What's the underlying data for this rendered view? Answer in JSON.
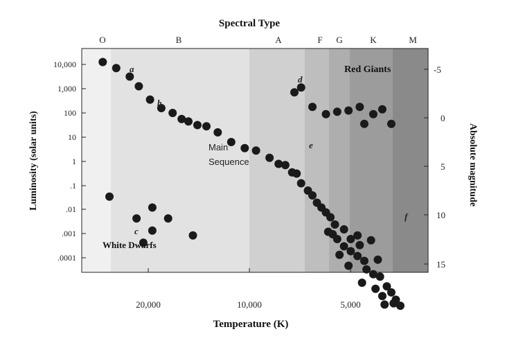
{
  "chart_data": {
    "type": "scatter",
    "title": "Spectral Type",
    "xlabel": "Temperature (K)",
    "ylabel_left": "Luminosity (solar units)",
    "ylabel_right": "Absolute magnitude",
    "spectral_types": [
      "O",
      "B",
      "A",
      "F",
      "G",
      "K",
      "M"
    ],
    "x_ticks": [
      "20,000",
      "10,000",
      "5,000"
    ],
    "y_ticks_left": [
      "10,000",
      "1,000",
      "100",
      "10",
      "1",
      ".1",
      ".01",
      ".001",
      ".0001"
    ],
    "y_ticks_right": [
      "-5",
      "0",
      "5",
      "10",
      "15"
    ],
    "regions": [
      {
        "label": "White Dwarfs"
      },
      {
        "label": "Main\nSequence"
      },
      {
        "label": "Red Giants"
      }
    ],
    "annotations": [
      "a",
      "b",
      "c",
      "d",
      "e",
      "f"
    ],
    "series": [
      {
        "name": "Main Sequence",
        "points": [
          [
            0.05,
            4.1
          ],
          [
            0.11,
            3.85
          ],
          [
            0.17,
            3.5
          ],
          [
            0.21,
            3.1
          ],
          [
            0.26,
            2.55
          ],
          [
            0.31,
            2.2
          ],
          [
            0.36,
            2.0
          ],
          [
            0.4,
            1.75
          ],
          [
            0.43,
            1.65
          ],
          [
            0.47,
            1.5
          ],
          [
            0.51,
            1.45
          ],
          [
            0.56,
            1.2
          ],
          [
            0.62,
            0.8
          ],
          [
            0.68,
            0.55
          ],
          [
            0.73,
            0.45
          ],
          [
            0.79,
            0.15
          ],
          [
            0.83,
            -0.1
          ],
          [
            0.86,
            -0.15
          ],
          [
            0.89,
            -0.45
          ],
          [
            0.91,
            -0.5
          ],
          [
            0.93,
            -0.9
          ],
          [
            0.96,
            -1.2
          ],
          [
            0.98,
            -1.4
          ],
          [
            1.0,
            -1.7
          ],
          [
            1.02,
            -1.9
          ],
          [
            1.04,
            -2.1
          ],
          [
            1.06,
            -2.3
          ],
          [
            1.08,
            -2.6
          ],
          [
            1.05,
            -2.9
          ],
          [
            1.09,
            -3.2
          ],
          [
            1.12,
            -3.5
          ],
          [
            1.1,
            -3.85
          ],
          [
            1.15,
            -3.7
          ],
          [
            1.18,
            -3.9
          ],
          [
            1.21,
            -4.1
          ],
          [
            1.14,
            -4.3
          ],
          [
            1.22,
            -4.45
          ],
          [
            1.25,
            -4.65
          ],
          [
            1.28,
            -4.75
          ],
          [
            1.2,
            -5.0
          ],
          [
            1.26,
            -5.25
          ],
          [
            1.31,
            -5.15
          ],
          [
            1.33,
            -5.4
          ],
          [
            1.29,
            -5.55
          ],
          [
            1.35,
            -5.7
          ],
          [
            1.3,
            -5.9
          ],
          [
            1.34,
            -5.85
          ],
          [
            1.37,
            -5.95
          ],
          [
            1.18,
            -3.05
          ],
          [
            1.12,
            -2.8
          ],
          [
            1.15,
            -3.2
          ],
          [
            1.19,
            -3.45
          ],
          [
            1.24,
            -3.25
          ],
          [
            1.27,
            -4.05
          ],
          [
            1.07,
            -3.0
          ]
        ]
      },
      {
        "name": "Red Giants",
        "points": [
          [
            0.9,
            2.85
          ],
          [
            0.93,
            3.05
          ],
          [
            0.98,
            2.25
          ],
          [
            1.04,
            1.95
          ],
          [
            1.09,
            2.05
          ],
          [
            1.14,
            2.1
          ],
          [
            1.19,
            2.25
          ],
          [
            1.21,
            1.55
          ],
          [
            1.25,
            1.95
          ],
          [
            1.29,
            2.15
          ],
          [
            1.33,
            1.55
          ]
        ]
      },
      {
        "name": "White Dwarfs",
        "points": [
          [
            0.08,
            -1.45
          ],
          [
            0.2,
            -2.35
          ],
          [
            0.27,
            -1.9
          ],
          [
            0.23,
            -3.35
          ],
          [
            0.27,
            -2.85
          ],
          [
            0.34,
            -2.35
          ],
          [
            0.45,
            -3.05
          ]
        ]
      }
    ]
  }
}
